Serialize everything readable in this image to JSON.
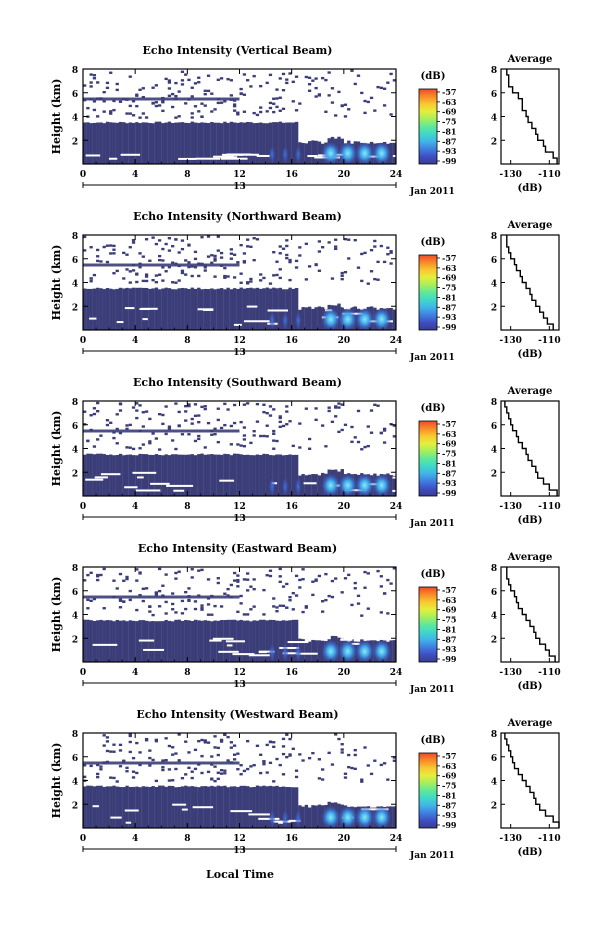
{
  "figure": {
    "xlabel_bottom": "Local Time",
    "date_label": "Jan 2011",
    "day_label": "13"
  },
  "chart_data": [
    {
      "type": "heatmap",
      "title": "Echo Intensity (Vertical Beam)",
      "beam": "vertical",
      "xlabel": "Local Time",
      "ylabel": "Height (km)",
      "xlim": [
        0,
        24
      ],
      "ylim": [
        0,
        8
      ],
      "xticks": [
        0,
        4,
        8,
        12,
        16,
        20,
        24
      ],
      "yticks": [
        2,
        4,
        6,
        8
      ],
      "colorbar": {
        "label": "(dB)",
        "ticks": [
          -57,
          -63,
          -69,
          -75,
          -81,
          -87,
          -93,
          -99
        ]
      },
      "echo_layer_top_km": 3.5,
      "strong_echo_hours": [
        19,
        23
      ],
      "profile": {
        "title": "Average",
        "xlabel": "(dB)",
        "xlim": [
          -135,
          -105
        ],
        "xticks": [
          -130,
          -110
        ],
        "ylim": [
          0,
          8
        ],
        "yticks": [
          2,
          4,
          6,
          8
        ],
        "heights": [
          0.5,
          1,
          1.5,
          2,
          2.5,
          3,
          3.5,
          4,
          4.5,
          5,
          5.5,
          6,
          6.5,
          7,
          7.5,
          8
        ],
        "values": [
          -106,
          -108,
          -112,
          -113,
          -116,
          -117,
          -119,
          -121,
          -122,
          -124,
          -124,
          -126,
          -129,
          -131,
          -131,
          -132
        ]
      }
    },
    {
      "type": "heatmap",
      "title": "Echo Intensity (Northward Beam)",
      "beam": "northward",
      "xlabel": "Local Time",
      "ylabel": "Height (km)",
      "xlim": [
        0,
        24
      ],
      "ylim": [
        0,
        8
      ],
      "xticks": [
        0,
        4,
        8,
        12,
        16,
        20,
        24
      ],
      "yticks": [
        2,
        4,
        6,
        8
      ],
      "colorbar": {
        "label": "(dB)",
        "ticks": [
          -57,
          -63,
          -69,
          -75,
          -81,
          -87,
          -93,
          -99
        ]
      },
      "echo_layer_top_km": 3.5,
      "strong_echo_hours": [
        19,
        23
      ],
      "profile": {
        "title": "Average",
        "xlabel": "(dB)",
        "xlim": [
          -135,
          -105
        ],
        "xticks": [
          -130,
          -110
        ],
        "ylim": [
          0,
          8
        ],
        "yticks": [
          2,
          4,
          6,
          8
        ],
        "heights": [
          0.5,
          1,
          1.5,
          2,
          2.5,
          3,
          3.5,
          4,
          4.5,
          5,
          5.5,
          6,
          6.5,
          7,
          7.5,
          8
        ],
        "values": [
          -108,
          -111,
          -113,
          -115,
          -117,
          -119,
          -120,
          -122,
          -124,
          -125,
          -127,
          -128,
          -130,
          -131,
          -132,
          -132
        ]
      }
    },
    {
      "type": "heatmap",
      "title": "Echo Intensity (Southward Beam)",
      "beam": "southward",
      "xlabel": "Local Time",
      "ylabel": "Height (km)",
      "xlim": [
        0,
        24
      ],
      "ylim": [
        0,
        8
      ],
      "xticks": [
        0,
        4,
        8,
        12,
        16,
        20,
        24
      ],
      "yticks": [
        2,
        4,
        6,
        8
      ],
      "colorbar": {
        "label": "(dB)",
        "ticks": [
          -57,
          -63,
          -69,
          -75,
          -81,
          -87,
          -93,
          -99
        ]
      },
      "echo_layer_top_km": 3.5,
      "strong_echo_hours": [
        19,
        23
      ],
      "profile": {
        "title": "Average",
        "xlabel": "(dB)",
        "xlim": [
          -135,
          -105
        ],
        "xticks": [
          -130,
          -110
        ],
        "ylim": [
          0,
          8
        ],
        "yticks": [
          2,
          4,
          6,
          8
        ],
        "heights": [
          0.5,
          1,
          1.5,
          2,
          2.5,
          3,
          3.5,
          4,
          4.5,
          5,
          5.5,
          6,
          6.5,
          7,
          7.5,
          8
        ],
        "values": [
          -106,
          -110,
          -113,
          -116,
          -117,
          -119,
          -121,
          -122,
          -124,
          -126,
          -127,
          -129,
          -130,
          -131,
          -132,
          -133
        ]
      }
    },
    {
      "type": "heatmap",
      "title": "Echo Intensity (Eastward Beam)",
      "beam": "eastward",
      "xlabel": "Local Time",
      "ylabel": "Height (km)",
      "xlim": [
        0,
        24
      ],
      "ylim": [
        0,
        8
      ],
      "xticks": [
        0,
        4,
        8,
        12,
        16,
        20,
        24
      ],
      "yticks": [
        2,
        4,
        6,
        8
      ],
      "colorbar": {
        "label": "(dB)",
        "ticks": [
          -57,
          -63,
          -69,
          -75,
          -81,
          -87,
          -93,
          -99
        ]
      },
      "echo_layer_top_km": 3.5,
      "strong_echo_hours": [
        19,
        23
      ],
      "profile": {
        "title": "Average",
        "xlabel": "(dB)",
        "xlim": [
          -135,
          -105
        ],
        "xticks": [
          -130,
          -110
        ],
        "ylim": [
          0,
          8
        ],
        "yticks": [
          2,
          4,
          6,
          8
        ],
        "heights": [
          0.5,
          1,
          1.5,
          2,
          2.5,
          3,
          3.5,
          4,
          4.5,
          5,
          5.5,
          6,
          6.5,
          7,
          7.5,
          8
        ],
        "values": [
          -107,
          -110,
          -112,
          -115,
          -117,
          -118,
          -120,
          -122,
          -124,
          -126,
          -127,
          -128,
          -130,
          -131,
          -132,
          -132
        ]
      }
    },
    {
      "type": "heatmap",
      "title": "Echo Intensity (Westward Beam)",
      "beam": "westward",
      "xlabel": "Local Time",
      "ylabel": "Height (km)",
      "xlim": [
        0,
        24
      ],
      "ylim": [
        0,
        8
      ],
      "xticks": [
        0,
        4,
        8,
        12,
        16,
        20,
        24
      ],
      "yticks": [
        2,
        4,
        6,
        8
      ],
      "colorbar": {
        "label": "(dB)",
        "ticks": [
          -57,
          -63,
          -69,
          -75,
          -81,
          -87,
          -93,
          -99
        ]
      },
      "echo_layer_top_km": 3.5,
      "strong_echo_hours": [
        19,
        23
      ],
      "profile": {
        "title": "Average",
        "xlabel": "(dB)",
        "xlim": [
          -135,
          -105
        ],
        "xticks": [
          -130,
          -110
        ],
        "ylim": [
          0,
          8
        ],
        "yticks": [
          2,
          4,
          6,
          8
        ],
        "heights": [
          0.5,
          1,
          1.5,
          2,
          2.5,
          3,
          3.5,
          4,
          4.5,
          5,
          5.5,
          6,
          6.5,
          7,
          7.5,
          8
        ],
        "values": [
          -105,
          -108,
          -112,
          -115,
          -117,
          -118,
          -120,
          -122,
          -124,
          -126,
          -128,
          -129,
          -130,
          -131,
          -132,
          -133
        ]
      }
    }
  ],
  "colors": {
    "base_echo": "#3b3d78",
    "colormap": [
      "#3a3c8e",
      "#3e4fc4",
      "#3f7fe0",
      "#40b4e8",
      "#3fd8c8",
      "#5fe89a",
      "#a6ef5c",
      "#e4ef3c",
      "#f8c830",
      "#f88a28",
      "#ef4b2a"
    ]
  }
}
